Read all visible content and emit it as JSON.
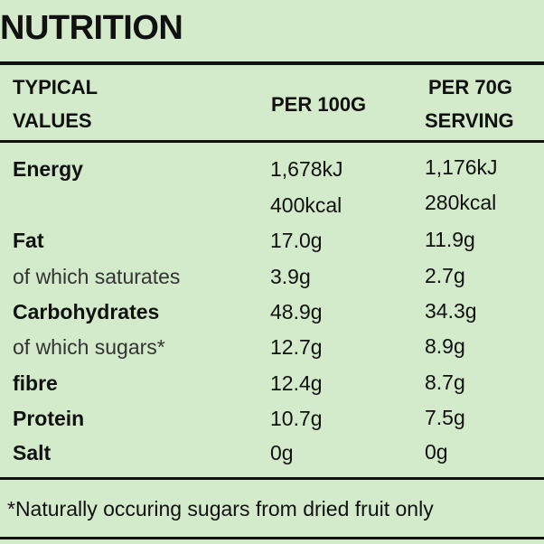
{
  "header": {
    "title": "NUTRITION"
  },
  "table": {
    "headers": [
      [
        "TYPICAL",
        "VALUES"
      ],
      [
        "PER 100G"
      ],
      [
        "PER 70G",
        "SERVING"
      ]
    ],
    "rows": [
      [
        "Energy",
        [
          "1,678kJ",
          "400kcal"
        ],
        [
          "1,176kJ",
          "280kcal"
        ]
      ],
      [
        "Fat",
        "17.0g",
        "11.9g"
      ],
      [
        "of which saturates",
        "3.9g",
        "2.7g"
      ],
      [
        "Carbohydrates",
        "48.9g",
        "34.3g"
      ],
      [
        "of which sugars*",
        "12.7g",
        "8.9g"
      ],
      [
        "fibre",
        "12.4g",
        "8.7g"
      ],
      [
        "Protein",
        "10.7g",
        "7.5g"
      ],
      [
        "Salt",
        "0g",
        "0g"
      ]
    ],
    "footnote": "*Naturally occuring sugars from dried fruit only"
  }
}
